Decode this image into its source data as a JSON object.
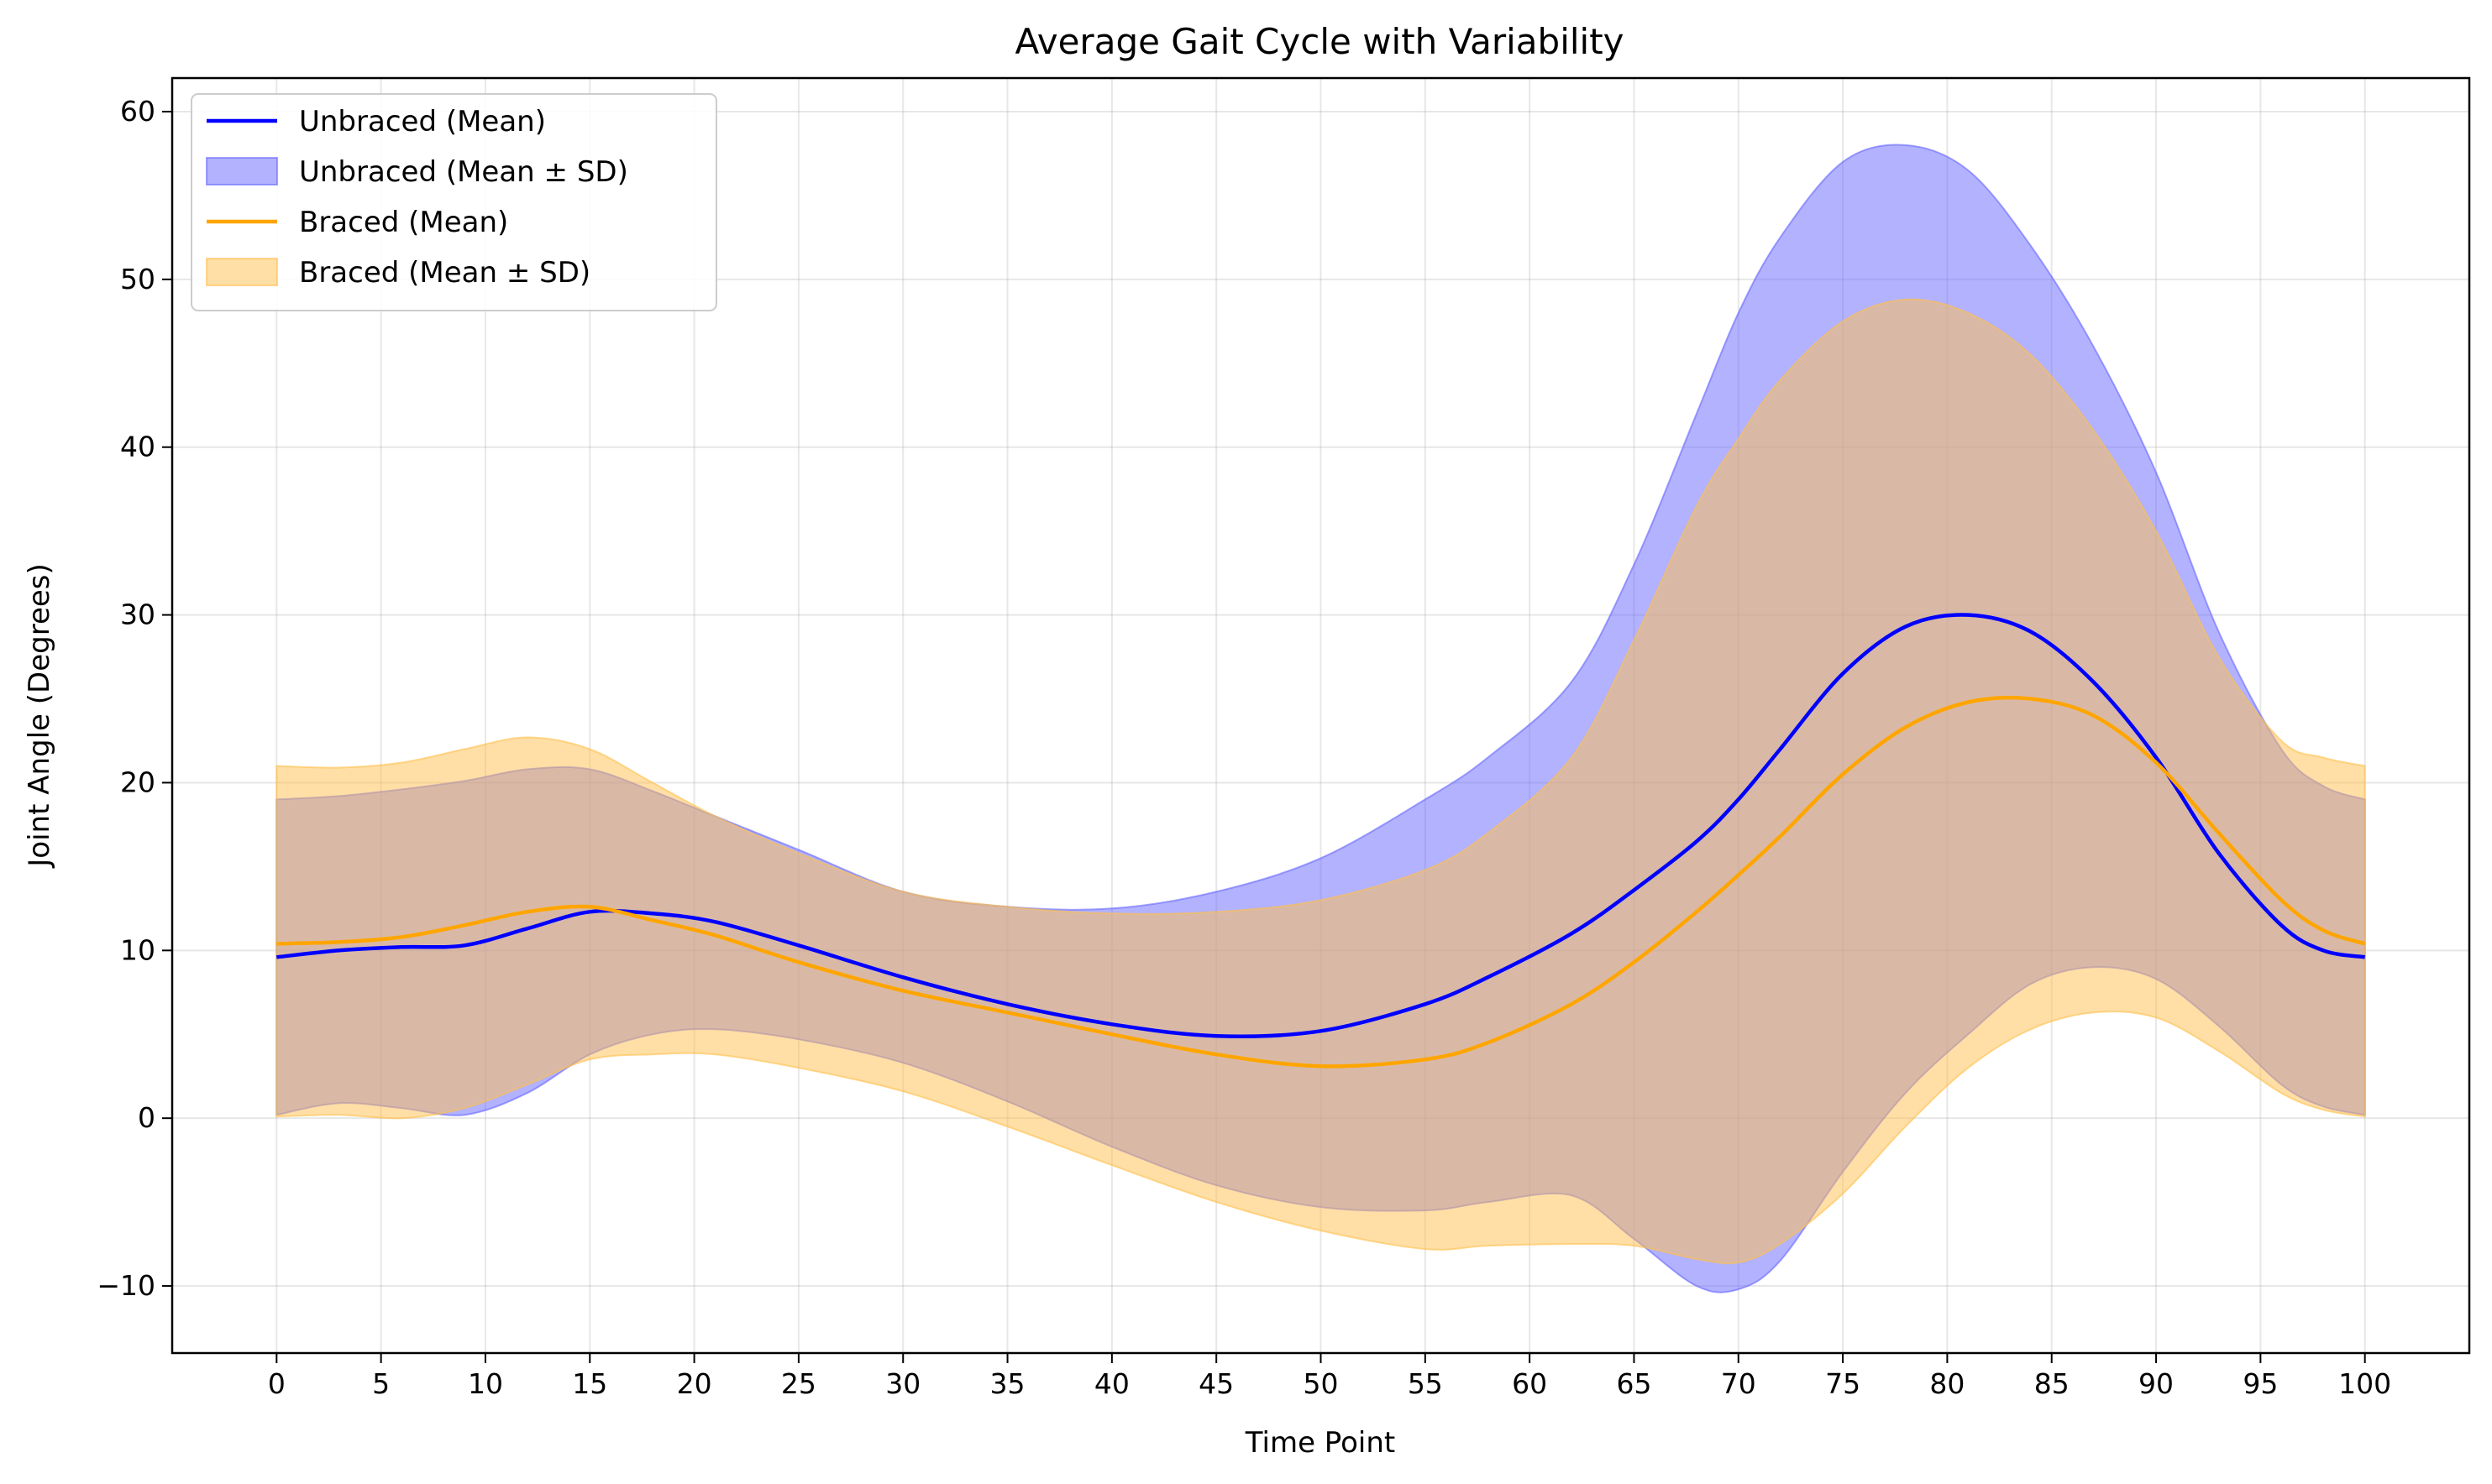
{
  "chart_data": {
    "type": "line",
    "title": "Average Gait Cycle with Variability",
    "xlabel": "Time Point",
    "ylabel": "Joint Angle (Degrees)",
    "xlim": [
      -5,
      105
    ],
    "ylim": [
      -14,
      62
    ],
    "xticks": [
      0,
      5,
      10,
      15,
      20,
      25,
      30,
      35,
      40,
      45,
      50,
      55,
      60,
      65,
      70,
      75,
      80,
      85,
      90,
      95,
      100
    ],
    "yticks": [
      -10,
      0,
      10,
      20,
      30,
      40,
      50,
      60
    ],
    "grid": true,
    "legend_position": "top-left",
    "x": [
      0,
      3,
      6,
      9,
      12,
      15,
      18,
      21,
      25,
      30,
      35,
      40,
      45,
      50,
      55,
      58,
      62,
      65,
      68,
      70,
      72,
      75,
      78,
      81,
      84,
      87,
      90,
      93,
      96,
      98,
      100
    ],
    "series": [
      {
        "name": "Unbraced (Mean)",
        "color": "#0000ff",
        "values": [
          9.6,
          10.0,
          10.2,
          10.3,
          11.3,
          12.3,
          12.2,
          11.7,
          10.3,
          8.4,
          6.8,
          5.6,
          4.9,
          5.2,
          6.8,
          8.4,
          11.0,
          13.6,
          16.5,
          19.0,
          22.0,
          26.5,
          29.3,
          30.0,
          29.0,
          26.0,
          21.5,
          15.8,
          11.5,
          10.0,
          9.6
        ]
      },
      {
        "name": "Unbraced (Mean ± SD)",
        "type": "band",
        "color": "#6666ff",
        "upper": [
          19,
          19.2,
          19.6,
          20.1,
          20.8,
          20.8,
          19.5,
          18.0,
          16.0,
          13.5,
          12.6,
          12.5,
          13.5,
          15.5,
          19.0,
          21.5,
          26.0,
          33.0,
          42.0,
          48.0,
          52.5,
          57.0,
          58.0,
          56.5,
          52.0,
          46.0,
          38.5,
          29.0,
          22.0,
          19.8,
          19
        ],
        "lower": [
          0.2,
          0.9,
          0.6,
          0.2,
          1.5,
          3.8,
          5.0,
          5.3,
          4.7,
          3.3,
          1.0,
          -1.7,
          -4.0,
          -5.3,
          -5.5,
          -5.0,
          -4.6,
          -7.2,
          -10.0,
          -10.2,
          -8.5,
          -3.2,
          1.5,
          5.0,
          8.0,
          9.0,
          8.3,
          5.5,
          2.0,
          0.7,
          0.2
        ]
      },
      {
        "name": "Braced (Mean)",
        "color": "#ffa500",
        "values": [
          10.4,
          10.5,
          10.8,
          11.5,
          12.3,
          12.6,
          11.8,
          10.9,
          9.3,
          7.6,
          6.3,
          5.0,
          3.8,
          3.1,
          3.5,
          4.5,
          6.8,
          9.3,
          12.3,
          14.5,
          16.8,
          20.5,
          23.3,
          24.8,
          25.0,
          24.0,
          21.2,
          17.0,
          13.0,
          11.2,
          10.4
        ]
      },
      {
        "name": "Braced (Mean ± SD)",
        "type": "band",
        "color": "#ffc04d",
        "upper": [
          21,
          20.9,
          21.2,
          22.0,
          22.7,
          22.0,
          20.0,
          18.0,
          15.8,
          13.5,
          12.6,
          12.2,
          12.3,
          13.0,
          14.8,
          17.0,
          21.5,
          28.5,
          36.5,
          40.5,
          44.0,
          47.5,
          48.8,
          48.0,
          45.5,
          41.0,
          35.0,
          27.5,
          22.5,
          21.5,
          21
        ],
        "lower": [
          0.1,
          0.2,
          0,
          0.6,
          2.0,
          3.5,
          3.8,
          3.8,
          3.0,
          1.6,
          -0.5,
          -2.8,
          -5.0,
          -6.7,
          -7.8,
          -7.6,
          -7.5,
          -7.6,
          -8.4,
          -8.6,
          -7.5,
          -4.5,
          -0.5,
          3.0,
          5.3,
          6.3,
          6.0,
          4.0,
          1.5,
          0.5,
          0.1
        ]
      }
    ]
  }
}
